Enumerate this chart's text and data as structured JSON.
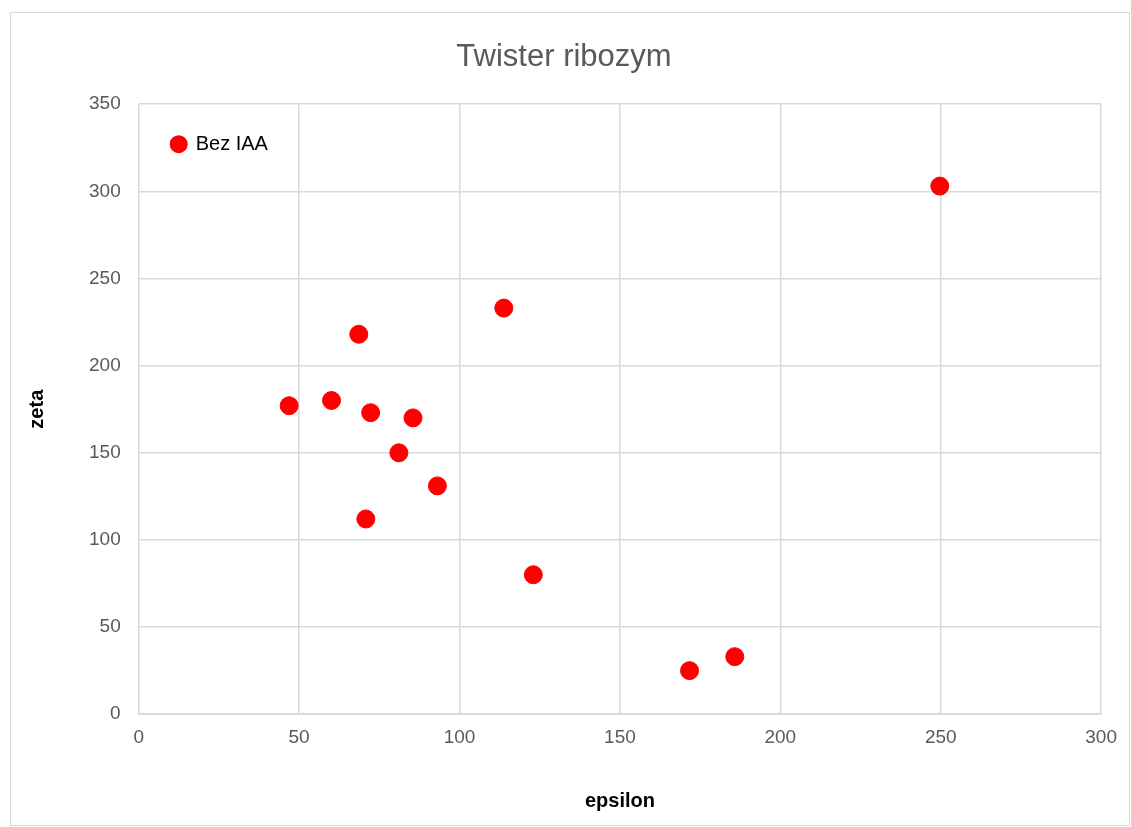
{
  "chart_data": {
    "type": "scatter",
    "title": "Twister ribozym",
    "xlabel": "epsilon",
    "ylabel": "zeta",
    "series": [
      {
        "name": "Bez IAA",
        "color": "#ff0000",
        "x": [
          46.9,
          60.1,
          68.6,
          72.3,
          70.8,
          81.1,
          85.5,
          93.1,
          113.8,
          123,
          171.7,
          185.8,
          249.7
        ],
        "values": [
          177,
          180,
          218,
          173,
          112,
          150,
          170,
          131,
          233,
          80,
          25,
          33,
          303
        ]
      }
    ],
    "xlim": [
      0,
      300
    ],
    "xticks": [
      0,
      50,
      100,
      150,
      200,
      250,
      300
    ],
    "ylim": [
      0,
      350
    ],
    "yticks": [
      0,
      50,
      100,
      150,
      200,
      250,
      300,
      350
    ],
    "grid": true,
    "legend": "top left",
    "marker": "circle"
  }
}
